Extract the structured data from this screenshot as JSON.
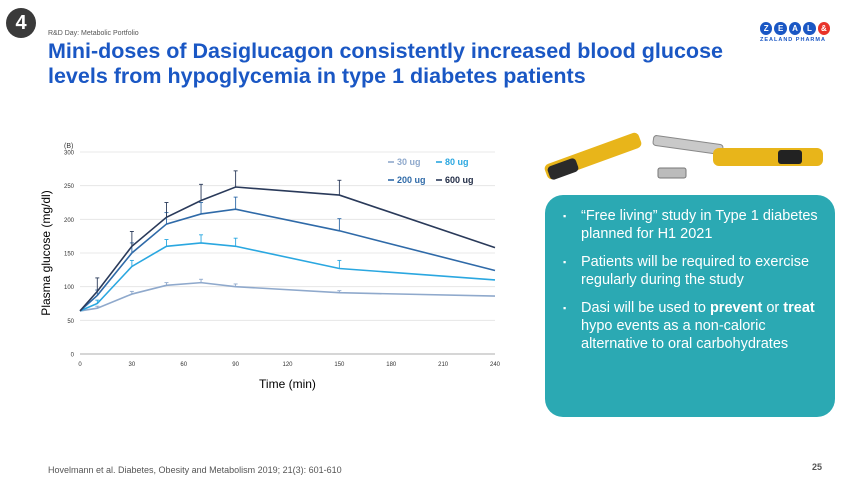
{
  "slide_number": "4",
  "kicker": "R&D Day: Metabolic Portfolio",
  "title": "Mini-doses of Dasiglucagon consistently increased blood glucose levels from hypoglycemia in type 1 diabetes patients",
  "logo": {
    "letters": [
      "Z",
      "E",
      "A",
      "L",
      "&"
    ],
    "subtitle": "ZEALAND PHARMA"
  },
  "callout": {
    "bullet_glyph": "▪",
    "items": [
      {
        "pre": "“Free living” study in Type 1 diabetes planned for H1 2021",
        "bold1": "",
        "mid": "",
        "bold2": "",
        "post": ""
      },
      {
        "pre": "Patients will be required to exercise regularly during the study",
        "bold1": "",
        "mid": "",
        "bold2": "",
        "post": ""
      },
      {
        "pre": "Dasi will be used to ",
        "bold1": "prevent",
        "mid": " or ",
        "bold2": "treat",
        "post": " hypo events as a non-caloric alternative to oral carbohydrates"
      }
    ]
  },
  "footer": "Hovelmann et al. Diabetes, Obesity and Metabolism 2019; 21(3): 601-610",
  "page_number": "25",
  "chart_data": {
    "type": "line",
    "panel_label": "(B)",
    "xlabel": "Time (min)",
    "ylabel": "Plasma glucose (mg/dl)",
    "xlim": [
      0,
      240
    ],
    "ylim": [
      0,
      300
    ],
    "xticks": [
      0,
      30,
      60,
      90,
      120,
      150,
      180,
      210,
      240
    ],
    "yticks": [
      0,
      50,
      100,
      150,
      200,
      250,
      300
    ],
    "grid": true,
    "legend_position": "top-right",
    "x": [
      0,
      10,
      30,
      50,
      70,
      90,
      150,
      240
    ],
    "series": [
      {
        "name": "30 ug",
        "color": "#8fa9cc",
        "values": [
          64,
          68,
          89,
          102,
          106,
          100,
          91,
          86
        ],
        "err": [
          0,
          3,
          4,
          4,
          5,
          4,
          3,
          0
        ]
      },
      {
        "name": "80 ug",
        "color": "#2aa7e0",
        "values": [
          64,
          75,
          130,
          160,
          165,
          160,
          127,
          110
        ],
        "err": [
          0,
          5,
          9,
          10,
          12,
          12,
          12,
          0
        ]
      },
      {
        "name": "200 ug",
        "color": "#2f6aa8",
        "values": [
          64,
          87,
          150,
          193,
          208,
          215,
          183,
          124
        ],
        "err": [
          0,
          8,
          15,
          17,
          17,
          18,
          18,
          0
        ]
      },
      {
        "name": "600 ug",
        "color": "#2a3a5a",
        "values": [
          64,
          93,
          160,
          203,
          228,
          248,
          236,
          158
        ],
        "err": [
          0,
          20,
          22,
          22,
          24,
          24,
          22,
          0
        ]
      }
    ]
  }
}
